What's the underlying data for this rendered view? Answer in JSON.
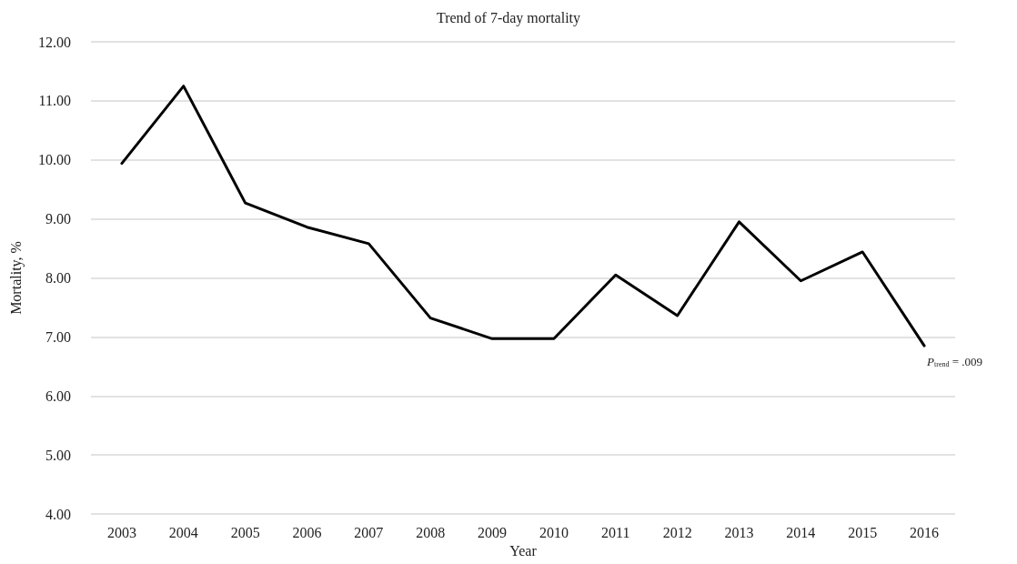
{
  "chart_data": {
    "type": "line",
    "title": "Trend of 7-day mortality",
    "xlabel": "Year",
    "ylabel": "Mortality, %",
    "categories": [
      "2003",
      "2004",
      "2005",
      "2006",
      "2007",
      "2008",
      "2009",
      "2010",
      "2011",
      "2012",
      "2013",
      "2014",
      "2015",
      "2016"
    ],
    "series": [
      {
        "color": "#000000",
        "values": [
          9.94,
          11.25,
          9.27,
          8.86,
          8.58,
          7.32,
          6.97,
          6.97,
          8.05,
          7.36,
          8.95,
          7.95,
          8.44,
          6.85
        ]
      }
    ],
    "ylim": [
      4,
      12
    ],
    "yticks": [
      {
        "value": 4,
        "label": "4.00"
      },
      {
        "value": 5,
        "label": "5.00"
      },
      {
        "value": 6,
        "label": "6.00"
      },
      {
        "value": 7,
        "label": "7.00"
      },
      {
        "value": 8,
        "label": "8.00"
      },
      {
        "value": 9,
        "label": "9.00"
      },
      {
        "value": 10,
        "label": "10.00"
      },
      {
        "value": 11,
        "label": "11.00"
      },
      {
        "value": 12,
        "label": "12.00"
      }
    ],
    "grid": "y",
    "marker": "none",
    "line_style": "solid",
    "annotations": [
      {
        "text": "P$_{trend}$ = .009",
        "x": "2016",
        "y": 6.85
      }
    ]
  }
}
